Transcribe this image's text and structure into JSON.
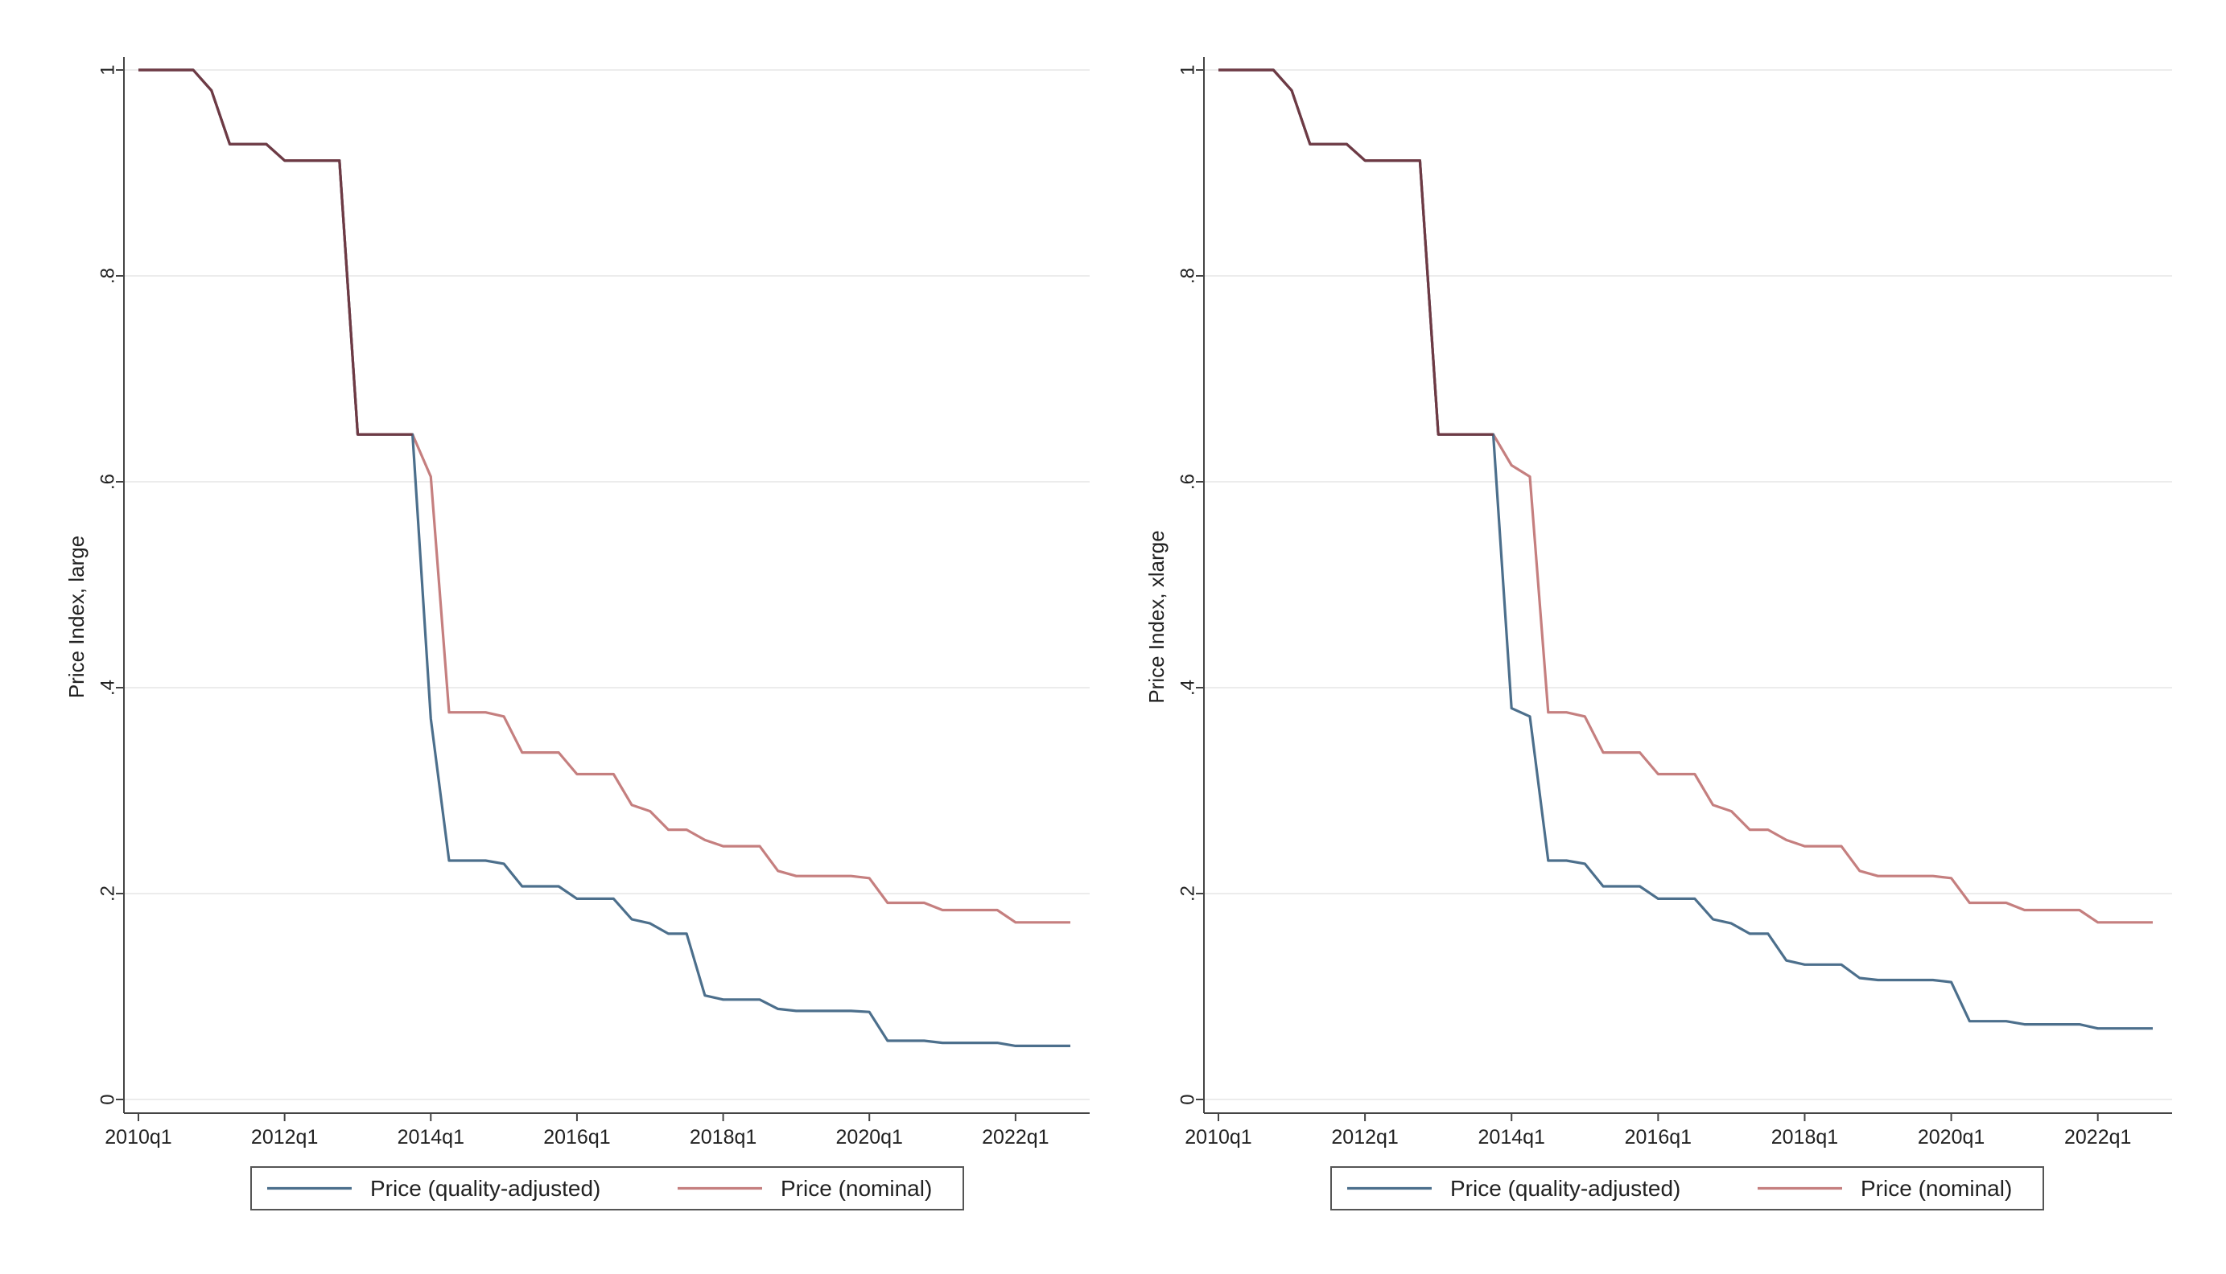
{
  "chart_data": [
    {
      "type": "line",
      "title": "",
      "xlabel": "",
      "ylabel": "Price Index, large",
      "xlim": [
        "2010q1",
        "2022q4"
      ],
      "ylim": [
        0,
        1
      ],
      "x_ticks": [
        "2010q1",
        "2012q1",
        "2014q1",
        "2016q1",
        "2018q1",
        "2020q1",
        "2022q1"
      ],
      "y_ticks": [
        "0",
        ".2",
        ".4",
        ".6",
        ".8",
        "1"
      ],
      "grid": true,
      "legend": "bottom",
      "x": [
        "2010q1",
        "2010q2",
        "2010q3",
        "2010q4",
        "2011q1",
        "2011q2",
        "2011q3",
        "2011q4",
        "2012q1",
        "2012q2",
        "2012q3",
        "2012q4",
        "2013q1",
        "2013q2",
        "2013q3",
        "2013q4",
        "2014q1",
        "2014q2",
        "2014q3",
        "2014q4",
        "2015q1",
        "2015q2",
        "2015q3",
        "2015q4",
        "2016q1",
        "2016q2",
        "2016q3",
        "2016q4",
        "2017q1",
        "2017q2",
        "2017q3",
        "2017q4",
        "2018q1",
        "2018q2",
        "2018q3",
        "2018q4",
        "2019q1",
        "2019q2",
        "2019q3",
        "2019q4",
        "2020q1",
        "2020q2",
        "2020q3",
        "2020q4",
        "2021q1",
        "2021q2",
        "2021q3",
        "2021q4",
        "2022q1",
        "2022q2",
        "2022q3",
        "2022q4"
      ],
      "series": [
        {
          "name": "Price (quality-adjusted)",
          "color": "#4c6f8c",
          "values": [
            1,
            1,
            1,
            1,
            0.98,
            0.928,
            0.928,
            0.928,
            0.912,
            0.912,
            0.912,
            0.912,
            0.646,
            0.646,
            0.646,
            0.646,
            0.37,
            0.232,
            0.232,
            0.232,
            0.229,
            0.207,
            0.207,
            0.207,
            0.195,
            0.195,
            0.195,
            0.175,
            0.171,
            0.161,
            0.161,
            0.101,
            0.097,
            0.097,
            0.097,
            0.088,
            0.086,
            0.086,
            0.086,
            0.086,
            0.085,
            0.057,
            0.057,
            0.057,
            0.055,
            0.055,
            0.055,
            0.055,
            0.052,
            0.052,
            0.052,
            0.052
          ]
        },
        {
          "name": "Price (nominal)",
          "color": "#c57f7f",
          "values": [
            1,
            1,
            1,
            1,
            0.98,
            0.928,
            0.928,
            0.928,
            0.912,
            0.912,
            0.912,
            0.912,
            0.646,
            0.646,
            0.646,
            0.646,
            0.605,
            0.376,
            0.376,
            0.376,
            0.372,
            0.337,
            0.337,
            0.337,
            0.316,
            0.316,
            0.316,
            0.286,
            0.28,
            0.262,
            0.262,
            0.252,
            0.246,
            0.246,
            0.246,
            0.222,
            0.217,
            0.217,
            0.217,
            0.217,
            0.215,
            0.191,
            0.191,
            0.191,
            0.184,
            0.184,
            0.184,
            0.184,
            0.172,
            0.172,
            0.172,
            0.172
          ]
        }
      ]
    },
    {
      "type": "line",
      "title": "",
      "xlabel": "",
      "ylabel": "Price Index, xlarge",
      "xlim": [
        "2010q1",
        "2022q4"
      ],
      "ylim": [
        0,
        1
      ],
      "x_ticks": [
        "2010q1",
        "2012q1",
        "2014q1",
        "2016q1",
        "2018q1",
        "2020q1",
        "2022q1"
      ],
      "y_ticks": [
        "0",
        ".2",
        ".4",
        ".6",
        ".8",
        "1"
      ],
      "grid": true,
      "legend": "bottom",
      "x": [
        "2010q1",
        "2010q2",
        "2010q3",
        "2010q4",
        "2011q1",
        "2011q2",
        "2011q3",
        "2011q4",
        "2012q1",
        "2012q2",
        "2012q3",
        "2012q4",
        "2013q1",
        "2013q2",
        "2013q3",
        "2013q4",
        "2014q1",
        "2014q2",
        "2014q3",
        "2014q4",
        "2015q1",
        "2015q2",
        "2015q3",
        "2015q4",
        "2016q1",
        "2016q2",
        "2016q3",
        "2016q4",
        "2017q1",
        "2017q2",
        "2017q3",
        "2017q4",
        "2018q1",
        "2018q2",
        "2018q3",
        "2018q4",
        "2019q1",
        "2019q2",
        "2019q3",
        "2019q4",
        "2020q1",
        "2020q2",
        "2020q3",
        "2020q4",
        "2021q1",
        "2021q2",
        "2021q3",
        "2021q4",
        "2022q1",
        "2022q2",
        "2022q3",
        "2022q4"
      ],
      "series": [
        {
          "name": "Price (quality-adjusted)",
          "color": "#4c6f8c",
          "values": [
            1,
            1,
            1,
            1,
            0.98,
            0.928,
            0.928,
            0.928,
            0.912,
            0.912,
            0.912,
            0.912,
            0.646,
            0.646,
            0.646,
            0.646,
            0.38,
            0.372,
            0.232,
            0.232,
            0.229,
            0.207,
            0.207,
            0.207,
            0.195,
            0.195,
            0.195,
            0.175,
            0.171,
            0.161,
            0.161,
            0.135,
            0.131,
            0.131,
            0.131,
            0.118,
            0.116,
            0.116,
            0.116,
            0.116,
            0.114,
            0.076,
            0.076,
            0.076,
            0.073,
            0.073,
            0.073,
            0.073,
            0.069,
            0.069,
            0.069,
            0.069
          ]
        },
        {
          "name": "Price (nominal)",
          "color": "#c57f7f",
          "values": [
            1,
            1,
            1,
            1,
            0.98,
            0.928,
            0.928,
            0.928,
            0.912,
            0.912,
            0.912,
            0.912,
            0.646,
            0.646,
            0.646,
            0.646,
            0.616,
            0.605,
            0.376,
            0.376,
            0.372,
            0.337,
            0.337,
            0.337,
            0.316,
            0.316,
            0.316,
            0.286,
            0.28,
            0.262,
            0.262,
            0.252,
            0.246,
            0.246,
            0.246,
            0.222,
            0.217,
            0.217,
            0.217,
            0.217,
            0.215,
            0.191,
            0.191,
            0.191,
            0.184,
            0.184,
            0.184,
            0.184,
            0.172,
            0.172,
            0.172,
            0.172
          ]
        }
      ]
    }
  ]
}
